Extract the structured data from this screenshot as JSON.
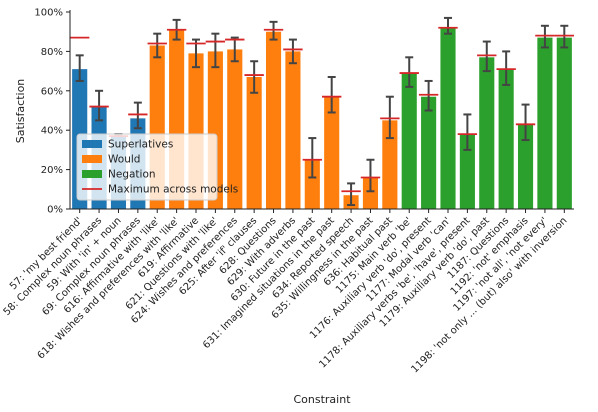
{
  "chart_data": {
    "type": "bar",
    "xlabel": "Constraint",
    "ylabel": "Satisfaction",
    "ylim": [
      0,
      100
    ],
    "yticks": [
      "0%",
      "20%",
      "40%",
      "60%",
      "80%",
      "100%"
    ],
    "grid": false,
    "legend_position": "lower-left",
    "colors": {
      "Superlatives": "#1f77b4",
      "Would": "#ff7f0e",
      "Negation": "#2ca02c",
      "max_marker": "#d62728",
      "error_bar": "#444444"
    },
    "legend": [
      {
        "label": "Superlatives",
        "kind": "patch",
        "color": "#1f77b4"
      },
      {
        "label": "Would",
        "kind": "patch",
        "color": "#ff7f0e"
      },
      {
        "label": "Negation",
        "kind": "patch",
        "color": "#2ca02c"
      },
      {
        "label": "Maximum across models",
        "kind": "line",
        "color": "#d62728"
      }
    ],
    "categories": [
      "57: 'my best friend'",
      "58: Complex noun phrases",
      "59: With 'in' + noun",
      "69: Complex noun phrases",
      "616: Affirmative with 'like'",
      "618: Wishes and preferences with 'like'",
      "619: Affirmative",
      "621: Questions with 'like'",
      "624: Wishes and preferences",
      "625: After 'if' clauses",
      "628: Questions",
      "629: With adverbs",
      "630: Future in the past",
      "631: Imagined situations in the past",
      "634: Reported speech",
      "635: Willingness in the past",
      "636: Habitual past",
      "1175: Main verb 'be'",
      "1176: Auxiliary verb 'do', present",
      "1177: Modal verb 'can'",
      "1178: Auxiliary verbs 'be', 'have', present",
      "1179: Auxiliary verb 'do', past",
      "1187: Questions",
      "1192: 'not' emphasis",
      "1197: 'not all', 'not every'",
      "1198: 'not only ... (but) also' with inversion"
    ],
    "groups": [
      "Superlatives",
      "Superlatives",
      "Superlatives",
      "Superlatives",
      "Would",
      "Would",
      "Would",
      "Would",
      "Would",
      "Would",
      "Would",
      "Would",
      "Would",
      "Would",
      "Would",
      "Would",
      "Would",
      "Negation",
      "Negation",
      "Negation",
      "Negation",
      "Negation",
      "Negation",
      "Negation",
      "Negation",
      "Negation"
    ],
    "values": [
      71,
      52,
      37,
      46,
      83,
      91,
      79,
      80,
      81,
      67,
      90,
      80,
      25,
      57,
      7,
      16,
      45,
      69,
      57,
      92,
      38,
      77,
      71,
      43,
      87,
      87
    ],
    "err_low": [
      65,
      45,
      37,
      41,
      77,
      86,
      72,
      72,
      75,
      59,
      86,
      74,
      16,
      49,
      2,
      9,
      36,
      62,
      50,
      89,
      30,
      70,
      63,
      35,
      82,
      82
    ],
    "err_high": [
      78,
      60,
      38,
      54,
      89,
      96,
      86,
      89,
      87,
      75,
      95,
      86,
      36,
      67,
      13,
      25,
      57,
      77,
      65,
      97,
      48,
      85,
      80,
      53,
      93,
      93
    ],
    "max_across_models": [
      87,
      52,
      37,
      48,
      84,
      91,
      84,
      85,
      86,
      68,
      91,
      81,
      25,
      57,
      9,
      16,
      46,
      69,
      58,
      92,
      38,
      78,
      71,
      43,
      88,
      88
    ]
  }
}
